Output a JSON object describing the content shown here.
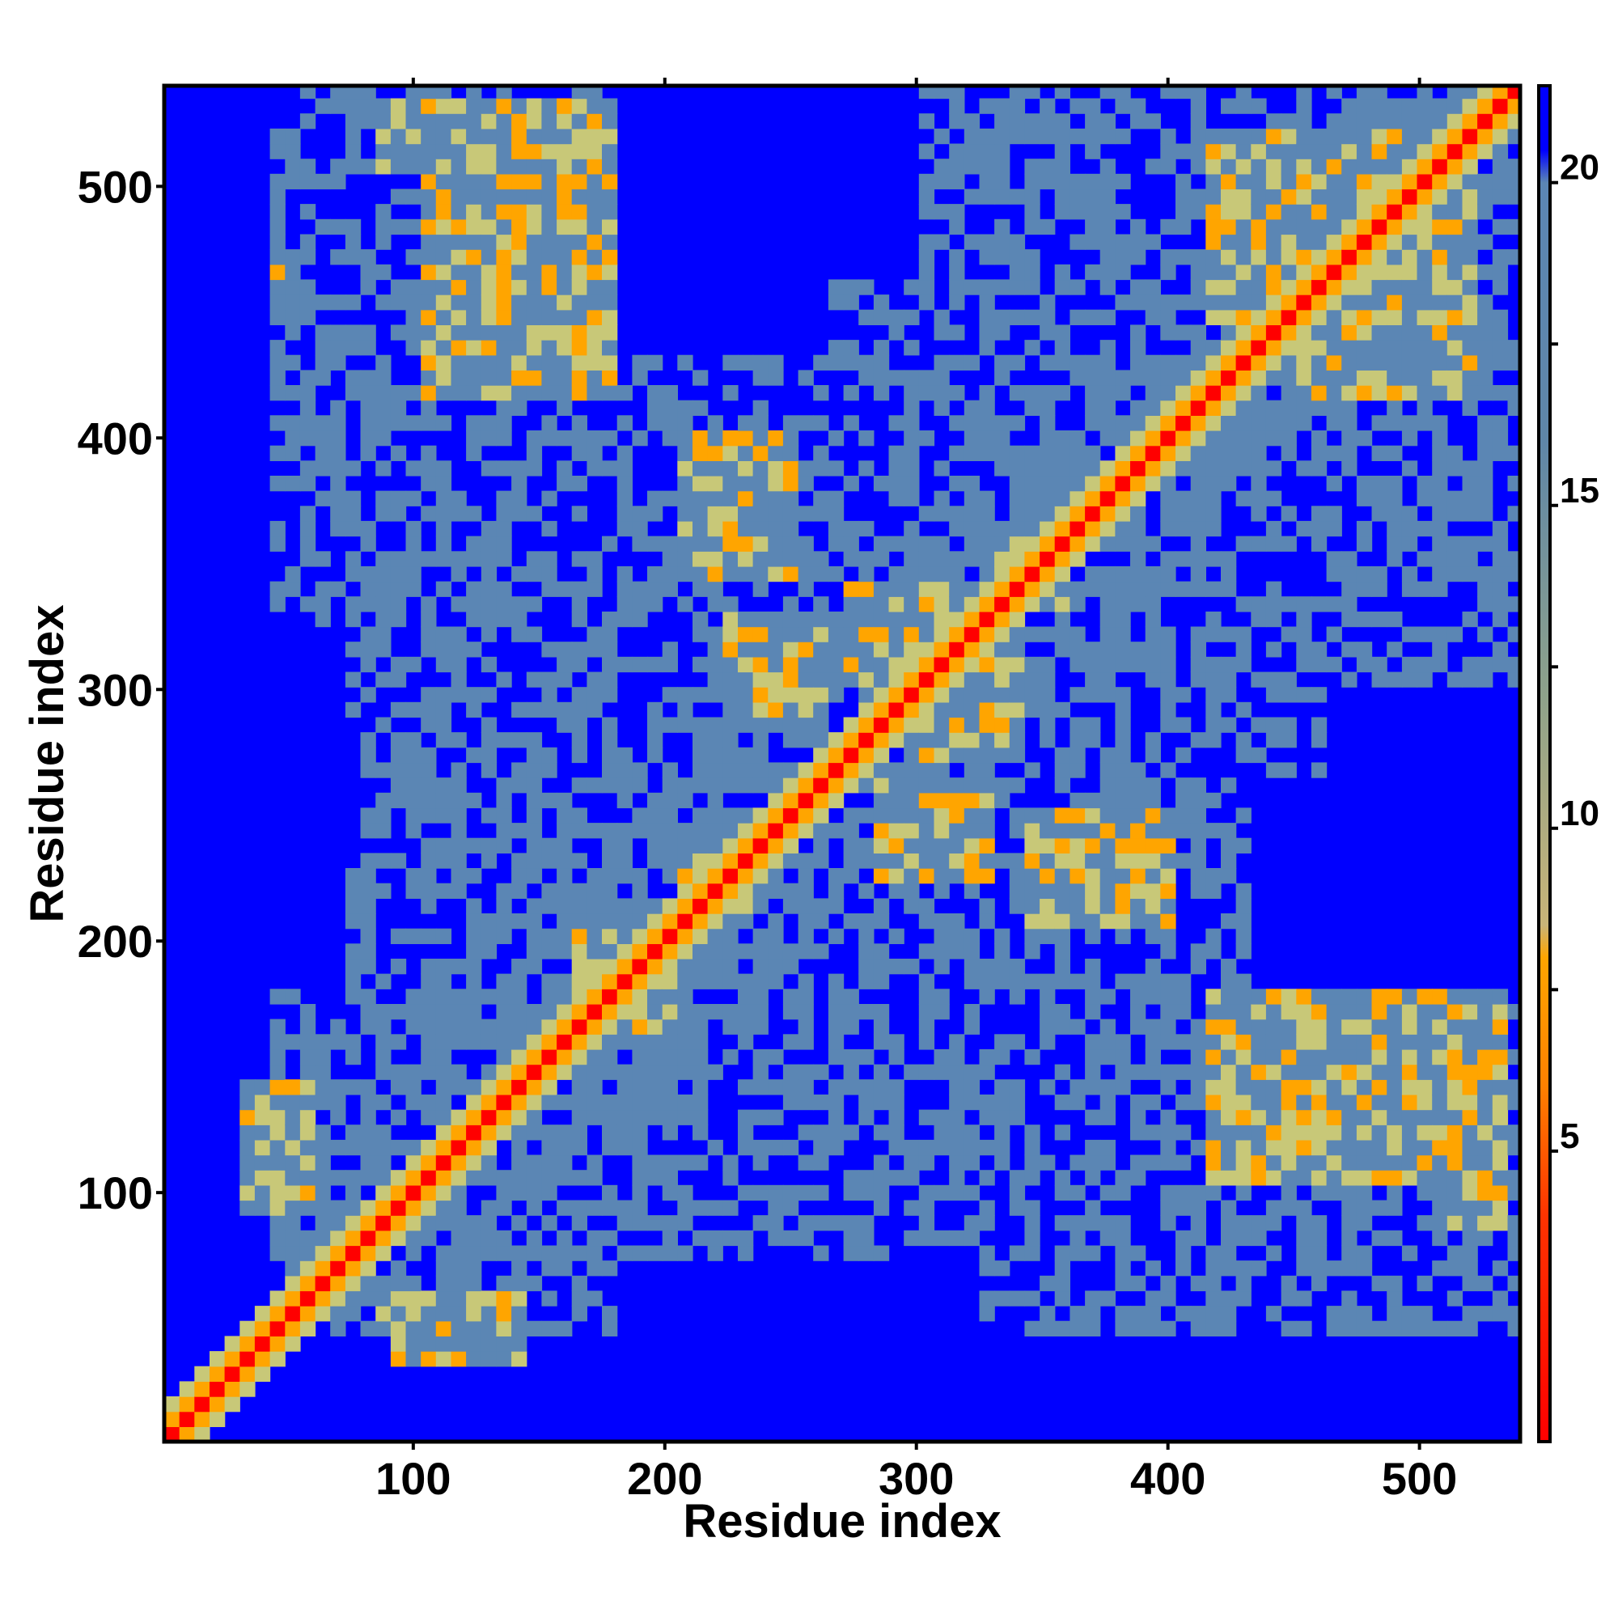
{
  "chart_data": {
    "type": "heatmap",
    "title": "",
    "xlabel": "Residue index",
    "ylabel": "Residue index",
    "xlim": [
      1,
      540
    ],
    "ylim": [
      1,
      540
    ],
    "x_ticks": [
      100,
      200,
      300,
      400,
      500
    ],
    "y_ticks": [
      100,
      200,
      300,
      400,
      500
    ],
    "colorbar": {
      "range": [
        0.5,
        21.5
      ],
      "ticks": [
        5,
        10,
        15,
        20
      ],
      "stops": [
        {
          "value": 0.5,
          "color": "#ff0000"
        },
        {
          "value": 4,
          "color": "#ff3300"
        },
        {
          "value": 6,
          "color": "#ff8000"
        },
        {
          "value": 8,
          "color": "#ffa500"
        },
        {
          "value": 8.5,
          "color": "#c8b478"
        },
        {
          "value": 12,
          "color": "#8fa28a"
        },
        {
          "value": 16,
          "color": "#5f86a8"
        },
        {
          "value": 20,
          "color": "#5b86b4"
        },
        {
          "value": 20.5,
          "color": "#0000ff"
        },
        {
          "value": 21.5,
          "color": "#0000ff"
        }
      ]
    },
    "colors": {
      "close": "#ff0000",
      "near": "#ffa500",
      "mid": "#c8c878",
      "far": "#5b86b4",
      "background": "#0000ff"
    },
    "diagonal": {
      "from": 1,
      "to": 540
    },
    "contact_bands": [
      {
        "x": [
          60,
          70
        ],
        "y": [
          55,
          75
        ]
      },
      {
        "x": [
          100,
          110
        ],
        "y": [
          95,
          110
        ]
      },
      {
        "x": [
          40,
          50
        ],
        "y": [
          85,
          105
        ]
      },
      {
        "x": [
          90,
          140
        ],
        "y": [
          30,
          60
        ]
      },
      {
        "x": [
          170,
          200
        ],
        "y": [
          160,
          200
        ]
      },
      {
        "x": [
          210,
          230
        ],
        "y": [
          200,
          230
        ]
      },
      {
        "x": [
          290,
          330
        ],
        "y": [
          230,
          260
        ]
      },
      {
        "x": [
          340,
          400
        ],
        "y": [
          200,
          250
        ]
      },
      {
        "x": [
          410,
          460
        ],
        "y": [
          120,
          160
        ]
      },
      {
        "x": [
          500,
          530
        ],
        "y": [
          80,
          170
        ]
      },
      {
        "x": [
          460,
          470
        ],
        "y": [
          40,
          50
        ]
      },
      {
        "x": [
          220,
          260
        ],
        "y": [
          280,
          330
        ]
      },
      {
        "x": [
          210,
          240
        ],
        "y": [
          340,
          400
        ]
      },
      {
        "x": [
          100,
          180
        ],
        "y": [
          410,
          530
        ]
      },
      {
        "x": [
          40,
          50
        ],
        "y": [
          460,
          470
        ]
      },
      {
        "x": [
          360,
          380
        ],
        "y": [
          360,
          380
        ]
      },
      {
        "x": [
          330,
          360
        ],
        "y": [
          330,
          350
        ]
      },
      {
        "x": [
          410,
          500
        ],
        "y": [
          440,
          520
        ]
      },
      {
        "x": [
          470,
          520
        ],
        "y": [
          410,
          470
        ]
      },
      {
        "x": [
          300,
          340
        ],
        "y": [
          270,
          310
        ]
      }
    ],
    "empty_regions": [
      {
        "x": [
          1,
          30
        ],
        "y": [
          1,
          540
        ]
      },
      {
        "x": [
          1,
          540
        ],
        "y": [
          1,
          40
        ]
      },
      {
        "x": [
          180,
          320
        ],
        "y": [
          1,
          70
        ]
      },
      {
        "x": [
          460,
          540
        ],
        "y": [
          180,
          300
        ]
      },
      {
        "x": [
          170,
          260
        ],
        "y": [
          430,
          540
        ]
      }
    ]
  }
}
